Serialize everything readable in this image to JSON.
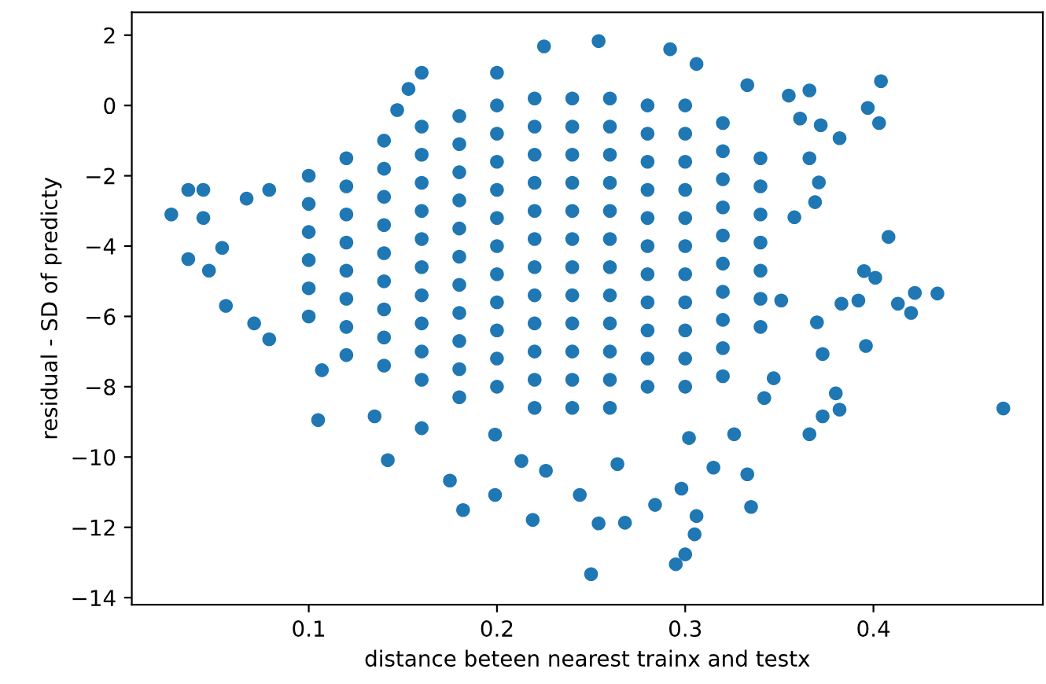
{
  "chart_data": {
    "type": "scatter",
    "xlabel": "distance beteen nearest trainx and testx",
    "ylabel": "residual - SD of predicty",
    "xlim": [
      0.006,
      0.49
    ],
    "xticks": [
      0.1,
      0.2,
      0.3,
      0.4
    ],
    "ylim": [
      -14.2,
      2.65
    ],
    "yticks": [
      -14,
      -12,
      -10,
      -8,
      -6,
      -4,
      -2,
      0,
      2
    ],
    "grid": false,
    "marker": "circle",
    "series": [
      {
        "color": "#1f77b4",
        "x": [
          0.027,
          0.036,
          0.044,
          0.036,
          0.044,
          0.047,
          0.054,
          0.056,
          0.067,
          0.079,
          0.071,
          0.16,
          0.153,
          0.147,
          0.225,
          0.254,
          0.292,
          0.306,
          0.2,
          0.333,
          0.355,
          0.366,
          0.404,
          0.397,
          0.403,
          0.382,
          0.372,
          0.361,
          0.371,
          0.369,
          0.366,
          0.408,
          0.434,
          0.422,
          0.42,
          0.413,
          0.395,
          0.401,
          0.392,
          0.383,
          0.358,
          0.37,
          0.351,
          0.469,
          0.396,
          0.373,
          0.366,
          0.373,
          0.38,
          0.382,
          0.335,
          0.333,
          0.326,
          0.315,
          0.306,
          0.305,
          0.3,
          0.295,
          0.25,
          0.268,
          0.254,
          0.284,
          0.219,
          0.182,
          0.199,
          0.175,
          0.142,
          0.105,
          0.107,
          0.079,
          0.135,
          0.16,
          0.226,
          0.213,
          0.199,
          0.302,
          0.298,
          0.264,
          0.244,
          0.342,
          0.347,
          0.1,
          0.1,
          0.1,
          0.1,
          0.1,
          0.1,
          0.12,
          0.12,
          0.12,
          0.12,
          0.12,
          0.12,
          0.12,
          0.12,
          0.14,
          0.14,
          0.14,
          0.14,
          0.14,
          0.14,
          0.14,
          0.14,
          0.14,
          0.16,
          0.16,
          0.16,
          0.16,
          0.16,
          0.16,
          0.16,
          0.16,
          0.16,
          0.16,
          0.18,
          0.18,
          0.18,
          0.18,
          0.18,
          0.18,
          0.18,
          0.18,
          0.18,
          0.18,
          0.18,
          0.2,
          0.2,
          0.2,
          0.2,
          0.2,
          0.2,
          0.2,
          0.2,
          0.2,
          0.2,
          0.2,
          0.22,
          0.22,
          0.22,
          0.22,
          0.22,
          0.22,
          0.22,
          0.22,
          0.22,
          0.22,
          0.22,
          0.22,
          0.24,
          0.24,
          0.24,
          0.24,
          0.24,
          0.24,
          0.24,
          0.24,
          0.24,
          0.24,
          0.24,
          0.24,
          0.26,
          0.26,
          0.26,
          0.26,
          0.26,
          0.26,
          0.26,
          0.26,
          0.26,
          0.26,
          0.26,
          0.26,
          0.28,
          0.28,
          0.28,
          0.28,
          0.28,
          0.28,
          0.28,
          0.28,
          0.28,
          0.28,
          0.28,
          0.3,
          0.3,
          0.3,
          0.3,
          0.3,
          0.3,
          0.3,
          0.3,
          0.3,
          0.3,
          0.3,
          0.32,
          0.32,
          0.32,
          0.32,
          0.32,
          0.32,
          0.32,
          0.32,
          0.32,
          0.32,
          0.34,
          0.34,
          0.34,
          0.34,
          0.34,
          0.34,
          0.34
        ],
        "values": [
          -3.1,
          -2.4,
          -2.4,
          -4.37,
          -3.2,
          -4.7,
          -4.05,
          -5.7,
          -2.65,
          -2.4,
          -6.2,
          0.93,
          0.47,
          -0.13,
          1.68,
          1.83,
          1.6,
          1.18,
          0.93,
          0.58,
          0.28,
          0.43,
          0.69,
          -0.07,
          -0.5,
          -0.93,
          -0.56,
          -0.37,
          -2.19,
          -2.75,
          -1.5,
          -3.74,
          -5.35,
          -5.33,
          -5.9,
          -5.64,
          -4.71,
          -4.9,
          -5.55,
          -5.64,
          -3.18,
          -6.17,
          -5.55,
          -8.62,
          -6.84,
          -7.07,
          -9.35,
          -8.84,
          -8.19,
          -8.65,
          -11.42,
          -10.49,
          -9.35,
          -10.3,
          -11.68,
          -12.2,
          -12.77,
          -13.05,
          -13.33,
          -11.87,
          -11.89,
          -11.36,
          -11.79,
          -11.51,
          -11.08,
          -10.67,
          -10.09,
          -8.95,
          -7.53,
          -6.65,
          -8.84,
          -9.18,
          -10.39,
          -10.11,
          -9.36,
          -9.46,
          -10.9,
          -10.2,
          -11.08,
          -8.32,
          -7.76,
          -2,
          -2.8,
          -3.6,
          -4.4,
          -5.2,
          -6,
          -1.5,
          -2.3,
          -3.1,
          -3.9,
          -4.7,
          -5.5,
          -6.3,
          -7.1,
          -1,
          -1.8,
          -2.6,
          -3.4,
          -4.2,
          -5,
          -5.8,
          -6.6,
          -7.4,
          -0.6,
          -1.4,
          -2.2,
          -3,
          -3.8,
          -4.6,
          -5.4,
          -6.2,
          -7,
          -7.8,
          -0.3,
          -1.1,
          -1.9,
          -2.7,
          -3.5,
          -4.3,
          -5.1,
          -5.9,
          -6.7,
          -7.5,
          -8.3,
          0,
          -0.8,
          -1.6,
          -2.4,
          -3.2,
          -4,
          -4.8,
          -5.6,
          -6.4,
          -7.2,
          -8,
          0.2,
          -0.6,
          -1.4,
          -2.2,
          -3,
          -3.8,
          -4.6,
          -5.4,
          -6.2,
          -7,
          -7.8,
          -8.6,
          0.2,
          -0.6,
          -1.4,
          -2.2,
          -3,
          -3.8,
          -4.6,
          -5.4,
          -6.2,
          -7,
          -7.8,
          -8.6,
          0.2,
          -0.6,
          -1.4,
          -2.2,
          -3,
          -3.8,
          -4.6,
          -5.4,
          -6.2,
          -7,
          -7.8,
          -8.6,
          0,
          -0.8,
          -1.6,
          -2.4,
          -3.2,
          -4,
          -4.8,
          -5.6,
          -6.4,
          -7.2,
          -8,
          0,
          -0.8,
          -1.6,
          -2.4,
          -3.2,
          -4,
          -4.8,
          -5.6,
          -6.4,
          -7.2,
          -8,
          -0.5,
          -1.3,
          -2.1,
          -2.9,
          -3.7,
          -4.5,
          -5.3,
          -6.1,
          -6.9,
          -7.7,
          -1.5,
          -2.3,
          -3.1,
          -3.9,
          -4.7,
          -5.5,
          -6.3
        ]
      }
    ]
  }
}
